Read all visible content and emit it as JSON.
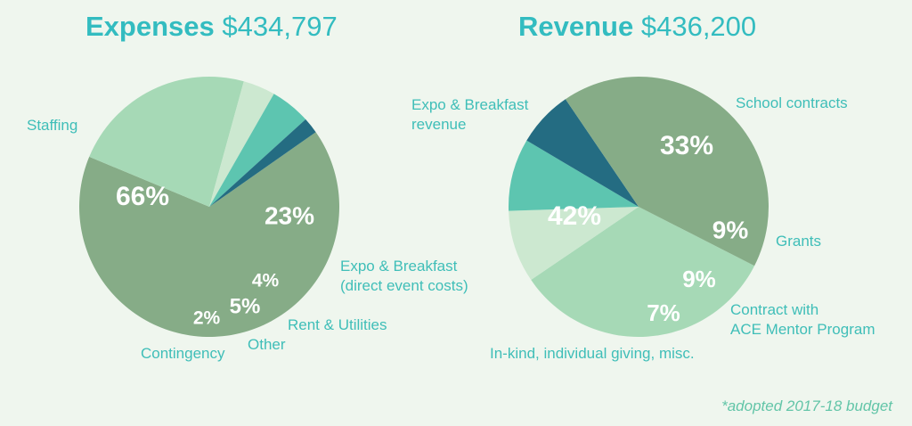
{
  "chart_data": [
    {
      "type": "pie",
      "title": "Expenses",
      "total": "$434,797",
      "slices": [
        {
          "label": "Staffing",
          "value": 66,
          "display": "66%",
          "color": "#86ac87"
        },
        {
          "label": "Expo & Breakfast\n(direct event costs)",
          "value": 23,
          "display": "23%",
          "color": "#a6d9b6"
        },
        {
          "label": "Rent & Utilities",
          "value": 4,
          "display": "4%",
          "color": "#cce8d0"
        },
        {
          "label": "Other",
          "value": 5,
          "display": "5%",
          "color": "#5dc5b0"
        },
        {
          "label": "Contingency",
          "value": 2,
          "display": "2%",
          "color": "#246c82"
        }
      ]
    },
    {
      "type": "pie",
      "title": "Revenue",
      "total": "$436,200",
      "slices": [
        {
          "label": "School contracts",
          "value": 33,
          "display": "33%",
          "color": "#a6d9b6"
        },
        {
          "label": "Grants",
          "value": 9,
          "display": "9%",
          "color": "#cce8d0"
        },
        {
          "label": "Contract with\nACE Mentor Program",
          "value": 9,
          "display": "9%",
          "color": "#5dc5b0"
        },
        {
          "label": "",
          "value": 7,
          "display": "7%",
          "color": "#246c82"
        },
        {
          "label": "Expo & Breakfast\nrevenue",
          "value": 42,
          "display": "42%",
          "color": "#86ac87"
        }
      ]
    }
  ],
  "extra_labels": [
    "In-kind, individual giving, misc."
  ],
  "footnote": "*adopted 2017-18 budget"
}
